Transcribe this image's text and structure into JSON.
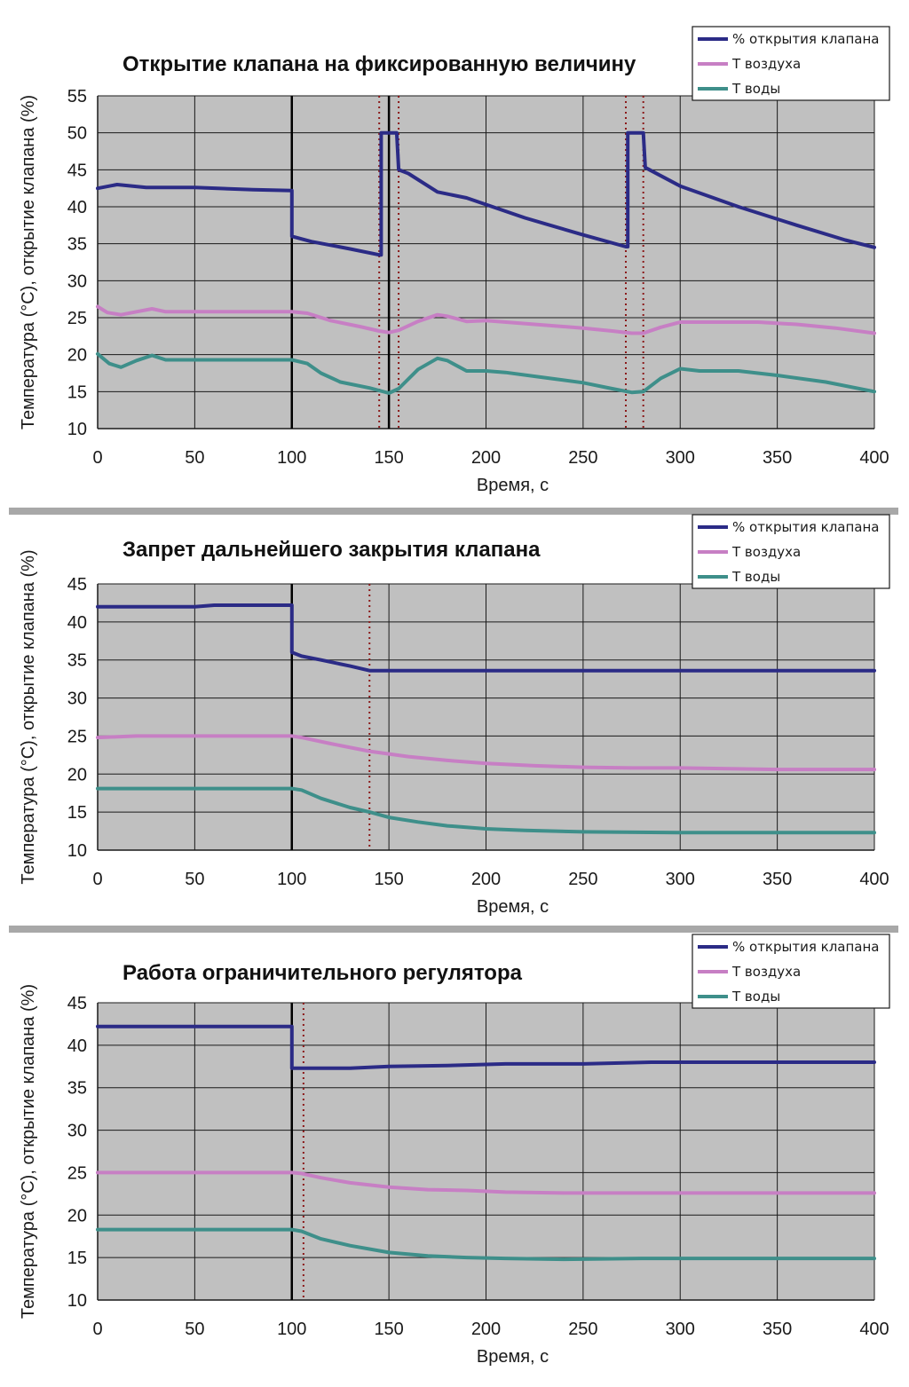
{
  "chart_data": [
    {
      "type": "line",
      "title": "Открытие клапана на фиксированную величину",
      "xlabel": "Время, с",
      "ylabel": "Температура (°С), открытие клапана (%)",
      "xlim": [
        0,
        400
      ],
      "ylim": [
        10,
        55
      ],
      "xticks": [
        0,
        50,
        100,
        150,
        200,
        250,
        300,
        350,
        400
      ],
      "yticks": [
        10,
        15,
        20,
        25,
        30,
        35,
        40,
        45,
        50,
        55
      ],
      "xtick_labels": [
        "0",
        "50",
        "100",
        "150",
        "200",
        "250",
        "300",
        "350",
        "400"
      ],
      "ytick_labels": [
        "10",
        "15",
        "20",
        "25",
        "30",
        "35",
        "40",
        "45",
        "50",
        "55"
      ],
      "grid": true,
      "legend_position": "top-right",
      "event_lines": [
        {
          "x": 100,
          "style": "solid"
        },
        {
          "x": 145,
          "style": "dotted"
        },
        {
          "x": 150,
          "style": "solid"
        },
        {
          "x": 155,
          "style": "dotted"
        },
        {
          "x": 272,
          "style": "dotted"
        },
        {
          "x": 281,
          "style": "dotted"
        }
      ],
      "series": [
        {
          "name": "% открытия клапана",
          "color": "#2b2b86",
          "x": [
            0,
            10,
            25,
            50,
            80,
            100,
            100,
            110,
            130,
            145,
            145,
            146,
            146,
            154,
            154,
            155,
            160,
            175,
            190,
            220,
            250,
            272,
            272,
            273,
            273,
            281,
            281,
            282,
            300,
            330,
            360,
            385,
            400
          ],
          "y": [
            42.5,
            43,
            42.6,
            42.6,
            42.3,
            42.2,
            36,
            35.3,
            34.3,
            33.5,
            33.5,
            33.5,
            50,
            50,
            50,
            45,
            44.5,
            42,
            41.2,
            38.5,
            36.2,
            34.6,
            34.6,
            34.6,
            50,
            50,
            50,
            45.3,
            42.8,
            40,
            37.5,
            35.5,
            34.5
          ]
        },
        {
          "name": "Т воздуха",
          "color": "#c77fc4",
          "x": [
            0,
            5,
            12,
            20,
            28,
            35,
            50,
            80,
            100,
            108,
            120,
            135,
            145,
            150,
            155,
            165,
            175,
            180,
            190,
            200,
            225,
            250,
            265,
            275,
            281,
            290,
            300,
            320,
            340,
            360,
            380,
            400
          ],
          "y": [
            26.5,
            25.7,
            25.4,
            25.8,
            26.2,
            25.8,
            25.8,
            25.8,
            25.8,
            25.6,
            24.6,
            23.8,
            23.2,
            23,
            23.3,
            24.5,
            25.4,
            25.2,
            24.5,
            24.6,
            24.1,
            23.6,
            23.2,
            22.9,
            22.9,
            23.7,
            24.4,
            24.4,
            24.4,
            24.1,
            23.6,
            22.9
          ]
        },
        {
          "name": "Т воды",
          "color": "#3e8f8a",
          "x": [
            0,
            6,
            12,
            20,
            28,
            35,
            50,
            80,
            100,
            108,
            115,
            125,
            140,
            150,
            155,
            165,
            175,
            180,
            190,
            200,
            210,
            230,
            250,
            265,
            275,
            281,
            290,
            300,
            310,
            330,
            350,
            375,
            400
          ],
          "y": [
            20.1,
            18.8,
            18.3,
            19.2,
            19.9,
            19.3,
            19.3,
            19.3,
            19.3,
            18.8,
            17.5,
            16.3,
            15.5,
            14.8,
            15.4,
            18.0,
            19.5,
            19.2,
            17.8,
            17.8,
            17.6,
            16.9,
            16.2,
            15.4,
            14.9,
            15.0,
            16.8,
            18.1,
            17.8,
            17.8,
            17.2,
            16.3,
            15.0
          ]
        }
      ]
    },
    {
      "type": "line",
      "title": "Запрет дальнейшего закрытия клапана",
      "xlabel": "Время, с",
      "ylabel": "Температура (°С), открытие клапана (%)",
      "xlim": [
        0,
        400
      ],
      "ylim": [
        10,
        45
      ],
      "xticks": [
        0,
        50,
        100,
        150,
        200,
        250,
        300,
        350,
        400
      ],
      "yticks": [
        10,
        15,
        20,
        25,
        30,
        35,
        40,
        45
      ],
      "xtick_labels": [
        "0",
        "50",
        "100",
        "150",
        "200",
        "250",
        "300",
        "350",
        "400"
      ],
      "ytick_labels": [
        "10",
        "15",
        "20",
        "25",
        "30",
        "35",
        "40",
        "45"
      ],
      "grid": true,
      "legend_position": "top-right",
      "event_lines": [
        {
          "x": 100,
          "style": "solid"
        },
        {
          "x": 140,
          "style": "dotted"
        }
      ],
      "series": [
        {
          "name": "% открытия клапана",
          "color": "#2b2b86",
          "x": [
            0,
            50,
            60,
            100,
            100,
            105,
            115,
            130,
            140,
            145,
            200,
            300,
            400
          ],
          "y": [
            42,
            42,
            42.2,
            42.2,
            36,
            35.5,
            35,
            34.2,
            33.6,
            33.6,
            33.6,
            33.6,
            33.6
          ],
          "stepwise_segment": true
        },
        {
          "name": "Т воздуха",
          "color": "#c77fc4",
          "x": [
            0,
            20,
            100,
            105,
            120,
            140,
            160,
            180,
            200,
            225,
            250,
            275,
            300,
            325,
            350,
            400
          ],
          "y": [
            24.8,
            25,
            25,
            24.8,
            24,
            23,
            22.3,
            21.8,
            21.4,
            21.1,
            20.9,
            20.8,
            20.8,
            20.7,
            20.6,
            20.6
          ]
        },
        {
          "name": "Т воды",
          "color": "#3e8f8a",
          "x": [
            0,
            100,
            105,
            115,
            130,
            140,
            150,
            165,
            180,
            200,
            220,
            250,
            300,
            350,
            400
          ],
          "y": [
            18.1,
            18.1,
            17.9,
            16.8,
            15.6,
            15,
            14.3,
            13.7,
            13.2,
            12.8,
            12.6,
            12.4,
            12.3,
            12.3,
            12.3
          ]
        }
      ]
    },
    {
      "type": "line",
      "title": "Работа ограничительного регулятора",
      "xlabel": "Время, с",
      "ylabel": "Температура (°С), открытие клапана (%)",
      "xlim": [
        0,
        400
      ],
      "ylim": [
        10,
        45
      ],
      "xticks": [
        0,
        50,
        100,
        150,
        200,
        250,
        300,
        350,
        400
      ],
      "yticks": [
        10,
        15,
        20,
        25,
        30,
        35,
        40,
        45
      ],
      "xtick_labels": [
        "0",
        "50",
        "100",
        "150",
        "200",
        "250",
        "300",
        "350",
        "400"
      ],
      "ytick_labels": [
        "10",
        "15",
        "20",
        "25",
        "30",
        "35",
        "40",
        "45"
      ],
      "grid": true,
      "legend_position": "top-right",
      "event_lines": [
        {
          "x": 100,
          "style": "solid"
        },
        {
          "x": 106,
          "style": "dotted"
        }
      ],
      "series": [
        {
          "name": "% открытия клапана",
          "color": "#2b2b86",
          "x": [
            0,
            100,
            100,
            101,
            130,
            150,
            180,
            210,
            250,
            285,
            330,
            400
          ],
          "y": [
            42.2,
            42.2,
            37.3,
            37.3,
            37.3,
            37.5,
            37.6,
            37.8,
            37.8,
            38,
            38,
            38
          ]
        },
        {
          "name": "Т воздуха",
          "color": "#c77fc4",
          "x": [
            0,
            100,
            105,
            115,
            130,
            150,
            170,
            190,
            210,
            240,
            280,
            330,
            400
          ],
          "y": [
            25,
            25,
            24.9,
            24.4,
            23.8,
            23.3,
            23.0,
            22.9,
            22.7,
            22.6,
            22.6,
            22.6,
            22.6
          ]
        },
        {
          "name": "Т воды",
          "color": "#3e8f8a",
          "x": [
            0,
            100,
            105,
            115,
            130,
            150,
            170,
            190,
            210,
            240,
            280,
            330,
            400
          ],
          "y": [
            18.3,
            18.3,
            18.1,
            17.2,
            16.4,
            15.6,
            15.2,
            15.0,
            14.9,
            14.8,
            14.9,
            14.9,
            14.9
          ]
        }
      ]
    }
  ]
}
